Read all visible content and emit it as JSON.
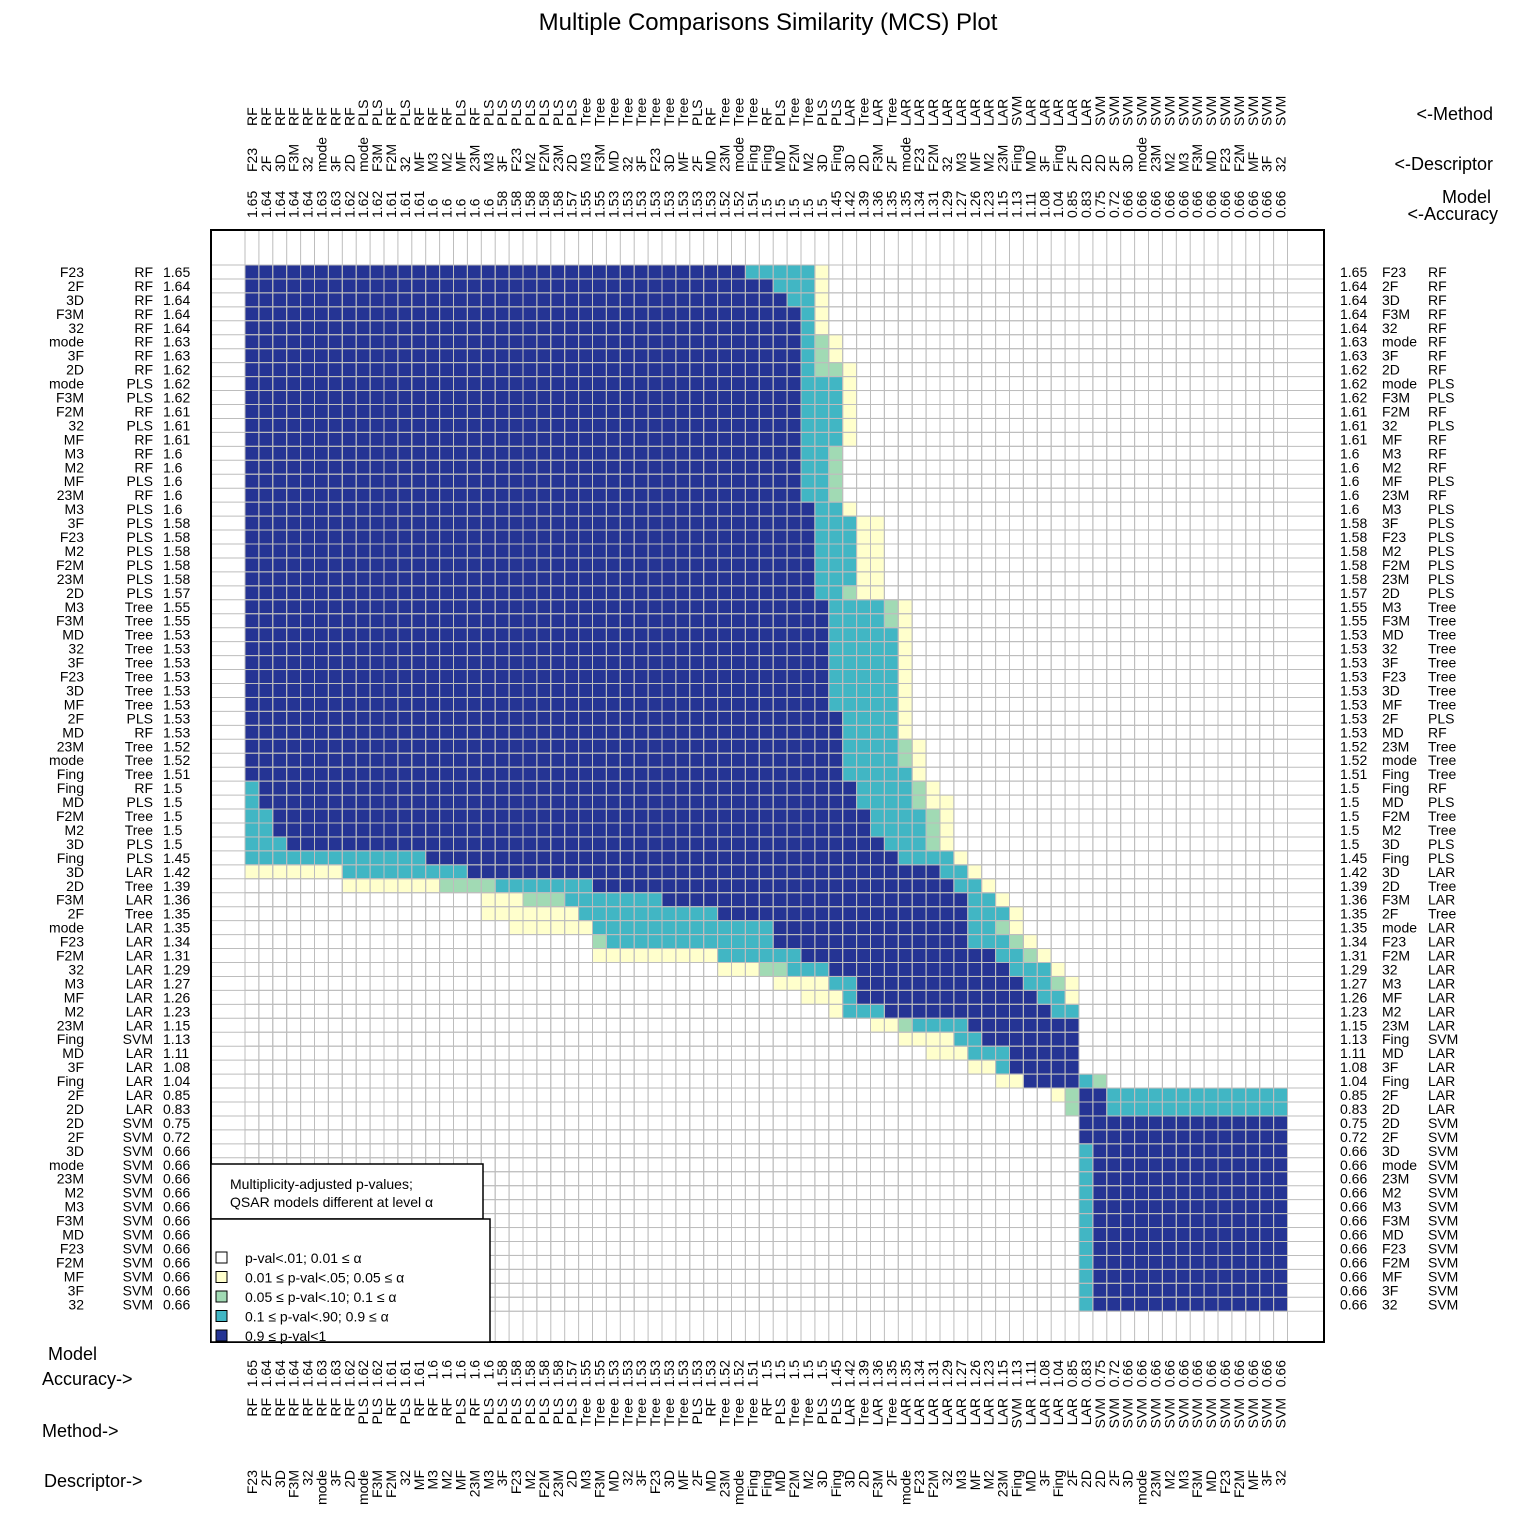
{
  "chart_data": {
    "type": "heatmap",
    "title": "Multiple Comparisons Similarity (MCS) Plot",
    "axis_labels": {
      "method_top": "<-Method",
      "descriptor_top": "<-Descriptor",
      "model_top": "Model",
      "accuracy_top": "<-Accuracy",
      "model_bottom": "Model",
      "accuracy_bottom": "Accuracy->",
      "method_bottom": "Method->",
      "descriptor_bottom": "Descriptor->"
    },
    "legend": {
      "header_line1": "Multiplicity-adjusted p-values;",
      "header_line2": "QSAR models different at level α",
      "items": [
        {
          "label": "p-val<.01;  0.01 ≤ α",
          "color": "#ffffff"
        },
        {
          "label": "0.01 ≤ p-val<.05;  0.05 ≤ α",
          "color": "#ffffcc"
        },
        {
          "label": "0.05 ≤ p-val<.10;    0.1 ≤ α",
          "color": "#a1dab4"
        },
        {
          "label": "0.1 ≤ p-val<.90;    0.9 ≤ α",
          "color": "#41b6c4"
        },
        {
          "label": "0.9 ≤ p-val<1",
          "color": "#253494"
        }
      ]
    },
    "models": [
      {
        "descriptor": "F23",
        "method": "RF",
        "accuracy": "1.65"
      },
      {
        "descriptor": "2F",
        "method": "RF",
        "accuracy": "1.64"
      },
      {
        "descriptor": "3D",
        "method": "RF",
        "accuracy": "1.64"
      },
      {
        "descriptor": "F3M",
        "method": "RF",
        "accuracy": "1.64"
      },
      {
        "descriptor": "32",
        "method": "RF",
        "accuracy": "1.64"
      },
      {
        "descriptor": "mode",
        "method": "RF",
        "accuracy": "1.63"
      },
      {
        "descriptor": "3F",
        "method": "RF",
        "accuracy": "1.63"
      },
      {
        "descriptor": "2D",
        "method": "RF",
        "accuracy": "1.62"
      },
      {
        "descriptor": "mode",
        "method": "PLS",
        "accuracy": "1.62"
      },
      {
        "descriptor": "F3M",
        "method": "PLS",
        "accuracy": "1.62"
      },
      {
        "descriptor": "F2M",
        "method": "RF",
        "accuracy": "1.61"
      },
      {
        "descriptor": "32",
        "method": "PLS",
        "accuracy": "1.61"
      },
      {
        "descriptor": "MF",
        "method": "RF",
        "accuracy": "1.61"
      },
      {
        "descriptor": "M3",
        "method": "RF",
        "accuracy": "1.6"
      },
      {
        "descriptor": "M2",
        "method": "RF",
        "accuracy": "1.6"
      },
      {
        "descriptor": "MF",
        "method": "PLS",
        "accuracy": "1.6"
      },
      {
        "descriptor": "23M",
        "method": "RF",
        "accuracy": "1.6"
      },
      {
        "descriptor": "M3",
        "method": "PLS",
        "accuracy": "1.6"
      },
      {
        "descriptor": "3F",
        "method": "PLS",
        "accuracy": "1.58"
      },
      {
        "descriptor": "F23",
        "method": "PLS",
        "accuracy": "1.58"
      },
      {
        "descriptor": "M2",
        "method": "PLS",
        "accuracy": "1.58"
      },
      {
        "descriptor": "F2M",
        "method": "PLS",
        "accuracy": "1.58"
      },
      {
        "descriptor": "23M",
        "method": "PLS",
        "accuracy": "1.58"
      },
      {
        "descriptor": "2D",
        "method": "PLS",
        "accuracy": "1.57"
      },
      {
        "descriptor": "M3",
        "method": "Tree",
        "accuracy": "1.55"
      },
      {
        "descriptor": "F3M",
        "method": "Tree",
        "accuracy": "1.55"
      },
      {
        "descriptor": "MD",
        "method": "Tree",
        "accuracy": "1.53"
      },
      {
        "descriptor": "32",
        "method": "Tree",
        "accuracy": "1.53"
      },
      {
        "descriptor": "3F",
        "method": "Tree",
        "accuracy": "1.53"
      },
      {
        "descriptor": "F23",
        "method": "Tree",
        "accuracy": "1.53"
      },
      {
        "descriptor": "3D",
        "method": "Tree",
        "accuracy": "1.53"
      },
      {
        "descriptor": "MF",
        "method": "Tree",
        "accuracy": "1.53"
      },
      {
        "descriptor": "2F",
        "method": "PLS",
        "accuracy": "1.53"
      },
      {
        "descriptor": "MD",
        "method": "RF",
        "accuracy": "1.53"
      },
      {
        "descriptor": "23M",
        "method": "Tree",
        "accuracy": "1.52"
      },
      {
        "descriptor": "mode",
        "method": "Tree",
        "accuracy": "1.52"
      },
      {
        "descriptor": "Fing",
        "method": "Tree",
        "accuracy": "1.51"
      },
      {
        "descriptor": "Fing",
        "method": "RF",
        "accuracy": "1.5"
      },
      {
        "descriptor": "MD",
        "method": "PLS",
        "accuracy": "1.5"
      },
      {
        "descriptor": "F2M",
        "method": "Tree",
        "accuracy": "1.5"
      },
      {
        "descriptor": "M2",
        "method": "Tree",
        "accuracy": "1.5"
      },
      {
        "descriptor": "3D",
        "method": "PLS",
        "accuracy": "1.5"
      },
      {
        "descriptor": "Fing",
        "method": "PLS",
        "accuracy": "1.45"
      },
      {
        "descriptor": "3D",
        "method": "LAR",
        "accuracy": "1.42"
      },
      {
        "descriptor": "2D",
        "method": "Tree",
        "accuracy": "1.39"
      },
      {
        "descriptor": "F3M",
        "method": "LAR",
        "accuracy": "1.36"
      },
      {
        "descriptor": "2F",
        "method": "Tree",
        "accuracy": "1.35"
      },
      {
        "descriptor": "mode",
        "method": "LAR",
        "accuracy": "1.35"
      },
      {
        "descriptor": "F23",
        "method": "LAR",
        "accuracy": "1.34"
      },
      {
        "descriptor": "F2M",
        "method": "LAR",
        "accuracy": "1.31"
      },
      {
        "descriptor": "32",
        "method": "LAR",
        "accuracy": "1.29"
      },
      {
        "descriptor": "M3",
        "method": "LAR",
        "accuracy": "1.27"
      },
      {
        "descriptor": "MF",
        "method": "LAR",
        "accuracy": "1.26"
      },
      {
        "descriptor": "M2",
        "method": "LAR",
        "accuracy": "1.23"
      },
      {
        "descriptor": "23M",
        "method": "LAR",
        "accuracy": "1.15"
      },
      {
        "descriptor": "Fing",
        "method": "SVM",
        "accuracy": "1.13"
      },
      {
        "descriptor": "MD",
        "method": "LAR",
        "accuracy": "1.11"
      },
      {
        "descriptor": "3F",
        "method": "LAR",
        "accuracy": "1.08"
      },
      {
        "descriptor": "Fing",
        "method": "LAR",
        "accuracy": "1.04"
      },
      {
        "descriptor": "2F",
        "method": "LAR",
        "accuracy": "0.85"
      },
      {
        "descriptor": "2D",
        "method": "LAR",
        "accuracy": "0.83"
      },
      {
        "descriptor": "2D",
        "method": "SVM",
        "accuracy": "0.75"
      },
      {
        "descriptor": "2F",
        "method": "SVM",
        "accuracy": "0.72"
      },
      {
        "descriptor": "3D",
        "method": "SVM",
        "accuracy": "0.66"
      },
      {
        "descriptor": "mode",
        "method": "SVM",
        "accuracy": "0.66"
      },
      {
        "descriptor": "23M",
        "method": "SVM",
        "accuracy": "0.66"
      },
      {
        "descriptor": "M2",
        "method": "SVM",
        "accuracy": "0.66"
      },
      {
        "descriptor": "M3",
        "method": "SVM",
        "accuracy": "0.66"
      },
      {
        "descriptor": "F3M",
        "method": "SVM",
        "accuracy": "0.66"
      },
      {
        "descriptor": "MD",
        "method": "SVM",
        "accuracy": "0.66"
      },
      {
        "descriptor": "F23",
        "method": "SVM",
        "accuracy": "0.66"
      },
      {
        "descriptor": "F2M",
        "method": "SVM",
        "accuracy": "0.66"
      },
      {
        "descriptor": "MF",
        "method": "SVM",
        "accuracy": "0.66"
      },
      {
        "descriptor": "3F",
        "method": "SVM",
        "accuracy": "0.66"
      },
      {
        "descriptor": "32",
        "method": "SVM",
        "accuracy": "0.66"
      }
    ],
    "matrix_legend_index": "0: p-val<.01, 1: 0.01-.05, 2: 0.05-.10, 3: 0.1-.90, 4: 0.9-1",
    "matrix": [
      "444444444444444444444444444444444444333331000000000000000000000000000000000",
      "444444444444444444444444444444444444443331000000000000000000000000000000000",
      "444444444444444444444444444444444444444331000000000000000000000000000000000",
      "444444444444444444444444444444444444444431000000000000000000000000000000000",
      "444444444444444444444444444444444444444431000000000000000000000000000000000",
      "444444444444444444444444444444444444444432100000000000000000000000000000000",
      "444444444444444444444444444444444444444432100000000000000000000000000000000",
      "444444444444444444444444444444444444444432210000000000000000000000000000000",
      "444444444444444444444444444444444444444433310000000000000000000000000000000",
      "444444444444444444444444444444444444444433310000000000000000000000000000000",
      "444444444444444444444444444444444444444433310000000000000000000000000000000",
      "444444444444444444444444444444444444444433310000000000000000000000000000000",
      "444444444444444444444444444444444444444433310000000000000000000000000000000",
      "444444444444444444444444444444444444444433200000000000000000000000000000000",
      "444444444444444444444444444444444444444433200000000000000000000000000000000",
      "444444444444444444444444444444444444444433200000000000000000000000000000000",
      "444444444444444444444444444444444444444433200000000000000000000000000000000",
      "444444444444444444444444444444444444444443310000000000000000000000000000000",
      "444444444444444444444444444444444444444443331100000000000000000000000000000",
      "444444444444444444444444444444444444444443331100000000000000000000000000000",
      "444444444444444444444444444444444444444443331100000000000000000000000000000",
      "444444444444444444444444444444444444444443331100000000000000000000000000000",
      "444444444444444444444444444444444444444443331100000000000000000000000000000",
      "444444444444444444444444444444444444444443321100000000000000000000000000000",
      "444444444444444444444444444444444444444444333321000000000000000000000000000",
      "444444444444444444444444444444444444444444333321000000000000000000000000000",
      "444444444444444444444444444444444444444444333331000000000000000000000000000",
      "444444444444444444444444444444444444444444333331000000000000000000000000000",
      "444444444444444444444444444444444444444444333331000000000000000000000000000",
      "444444444444444444444444444444444444444444333331000000000000000000000000000",
      "444444444444444444444444444444444444444444333331000000000000000000000000000",
      "444444444444444444444444444444444444444444333331000000000000000000000000000",
      "444444444444444444444444444444444444444444433331000000000000000000000000000",
      "444444444444444444444444444444444444444444433331000000000000000000000000000",
      "444444444444444444444444444444444444444444433332100000000000000000000000000",
      "444444444444444444444444444444444444444444433332100000000000000000000000000",
      "444444444444444444444444444444444444444444433333100000000000000000000000000",
      "344444444444444444444444444444444444444444443333210000000000000000000000000",
      "344444444444444444444444444444444444444444443333211000000000000000000000000",
      "334444444444444444444444444444444444444444444333321000000000000000000000000",
      "334444444444444444444444444444444444444444444333321000000000000000000000000",
      "333444444444444444444444444444444444444444444433321000000000000000000000000",
      "333333333333344444444444444444444444444444444443333100000000000000000000000",
      "111111133333333344444444444444444444444444444444443310000000000000000000000",
      "000000011111112222333333344444444444444444444444444331000000000000000000000",
      "000000000000000001112223333333444444444444444444444433100000000000000000000",
      "000000000000000001111111333333333344444444444444444433310000000000000000000",
      "000000000000000000011111133333333333334444444444444433210000000000000000000",
      "000000000000000000000000023333333333334444444444444433321000000000000000000",
      "000000000000000000000000011111111133333344444444444444332100000000000000000",
      "000000000000000000000000000000000011122333444444444444433310000000000000000",
      "000000000000000000000000000000000000001111334444444444443321000000000000000",
      "000000000000000000000000000000000000000011134444444444444331000000000000000",
      "000000000000000000000000000000000000000000133344444444444433000000000000000",
      "000000000000000000000000000000000000000000000112333344444444000000000000000",
      "000000000000000000000000000000000000000000000001111334444444000000000000000",
      "000000000000000000000000000000000000000000000000011133344444000000000000000",
      "000000000000000000000000000000000000000000000000000011344444000000000000000",
      "000000000000000000000000000000000000000000000000000000114444320000000000000",
      "000000000000000000000000000000000000000000000000000000000012443333333333333",
      "000000000000000000000000000000000000000000000000000000000002443333333333333",
      "000000000000000000000000000000000000000000000000000000000000444444444444444",
      "000000000000000000000000000000000000000000000000000000000000444444444444444",
      "000000000000000000000000000000000000000000000000000000000000344444444444444",
      "000000000000000000000000000000000000000000000000000000000000344444444444444",
      "000000000000000000000000000000000000000000000000000000000000344444444444444",
      "000000000000000000000000000000000000000000000000000000000000344444444444444",
      "000000000000000000000000000000000000000000000000000000000000344444444444444",
      "000000000000000000000000000000000000000000000000000000000000344444444444444",
      "000000000000000000000000000000000000000000000000000000000000344444444444444",
      "000000000000000000000000000000000000000000000000000000000000344444444444444",
      "000000000000000000000000000000000000000000000000000000000000344444444444444",
      "000000000000000000000000000000000000000000000000000000000000344444444444444",
      "000000000000000000000000000000000000000000000000000000000000344444444444444",
      "000000000000000000000000000000000000000000000000000000000000344444444444444"
    ]
  }
}
